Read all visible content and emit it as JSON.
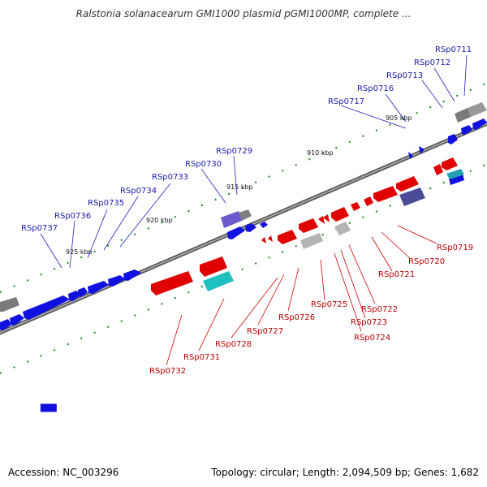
{
  "title": "Ralstonia solanacearum GMI1000 plasmid pGMI1000MP, complete ...",
  "footer": {
    "accession": "Accession: NC_003296",
    "topology": "Topology: circular; Length: 2,094,509 bp; Genes: 1,682"
  },
  "colors": {
    "forward": "#1010e0",
    "reverse": "#e00000",
    "other_grey": "#808080",
    "cyan": "#20c0c0",
    "purple": "#6a5acd",
    "label_blue": "#1a1aa8",
    "label_red": "#b80000",
    "tick_green": "#1a8a1a"
  },
  "kbp_labels": [
    "925 kbp",
    "920 kbp",
    "915 kbp",
    "910 kbp",
    "905 kbp"
  ],
  "top_labels": [
    "RSp0711",
    "RSp0712",
    "RSp0713",
    "RSp0716",
    "RSp0717",
    "RSp0729",
    "RSp0730",
    "RSp0733",
    "RSp0734",
    "RSp0735",
    "RSp0736",
    "RSp0737"
  ],
  "bottom_labels": [
    "RSp0719",
    "RSp0720",
    "RSp0721",
    "RSp0722",
    "RSp0723",
    "RSp0724",
    "RSp0725",
    "RSp0726",
    "RSp0727",
    "RSp0728",
    "RSp0731",
    "RSp0732"
  ]
}
